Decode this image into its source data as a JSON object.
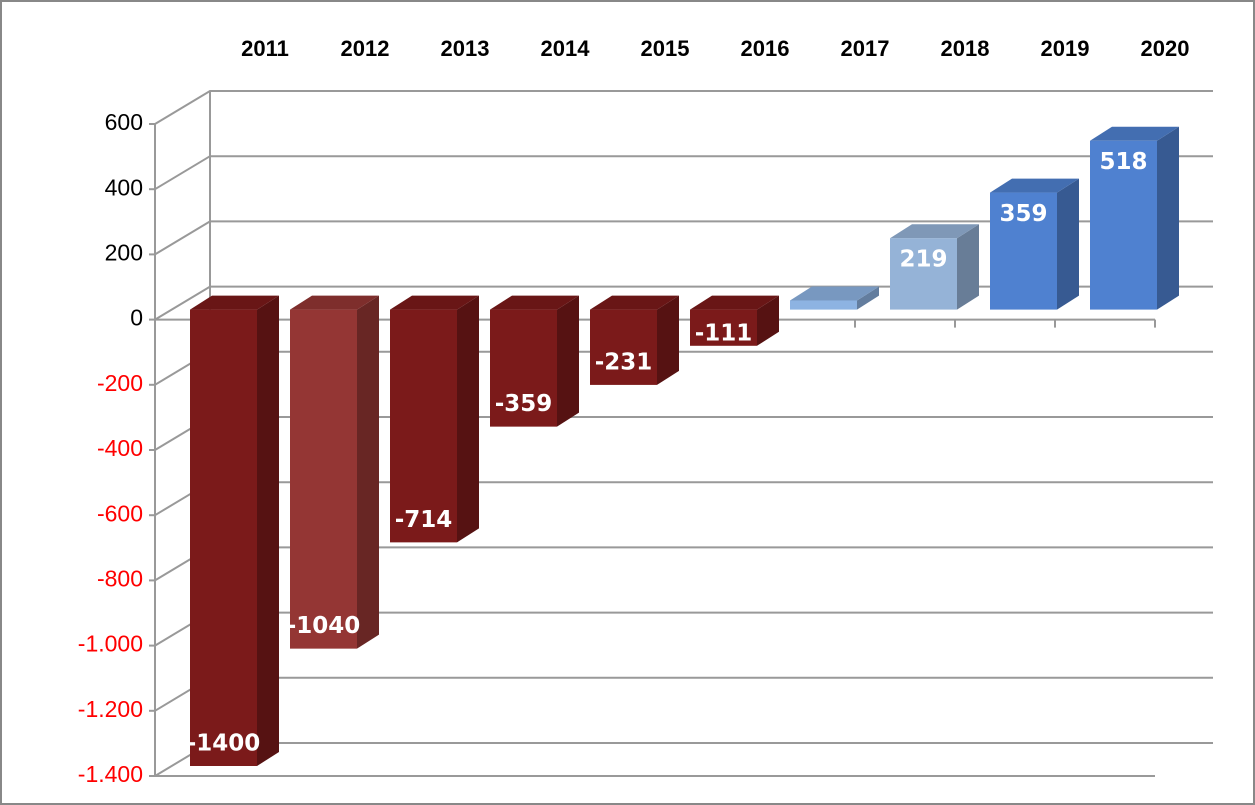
{
  "chart_data": {
    "type": "bar3d",
    "categories": [
      "2011",
      "2012",
      "2013",
      "2014",
      "2015",
      "2016",
      "2017",
      "2018",
      "2019",
      "2020"
    ],
    "values": [
      -1400,
      -1040,
      -714,
      -359,
      -231,
      -111,
      28,
      219,
      359,
      518
    ],
    "colors": [
      "#7b1a1a",
      "#943634",
      "#7b1a1a",
      "#7b1a1a",
      "#7b1a1a",
      "#7b1a1a",
      "#8db3e2",
      "#95b3d7",
      "#4f81d0",
      "#4f81d0"
    ],
    "ylim": [
      -1400,
      600
    ],
    "yticks": [
      600,
      400,
      200,
      0,
      -200,
      -400,
      -600,
      -800,
      {
        "value": -1000,
        "label": "-1.000"
      },
      {
        "value": -1200,
        "label": "-1.200"
      },
      {
        "value": -1400,
        "label": "-1.400"
      }
    ],
    "negative_tick_color": "#ff0000",
    "grid": true
  }
}
